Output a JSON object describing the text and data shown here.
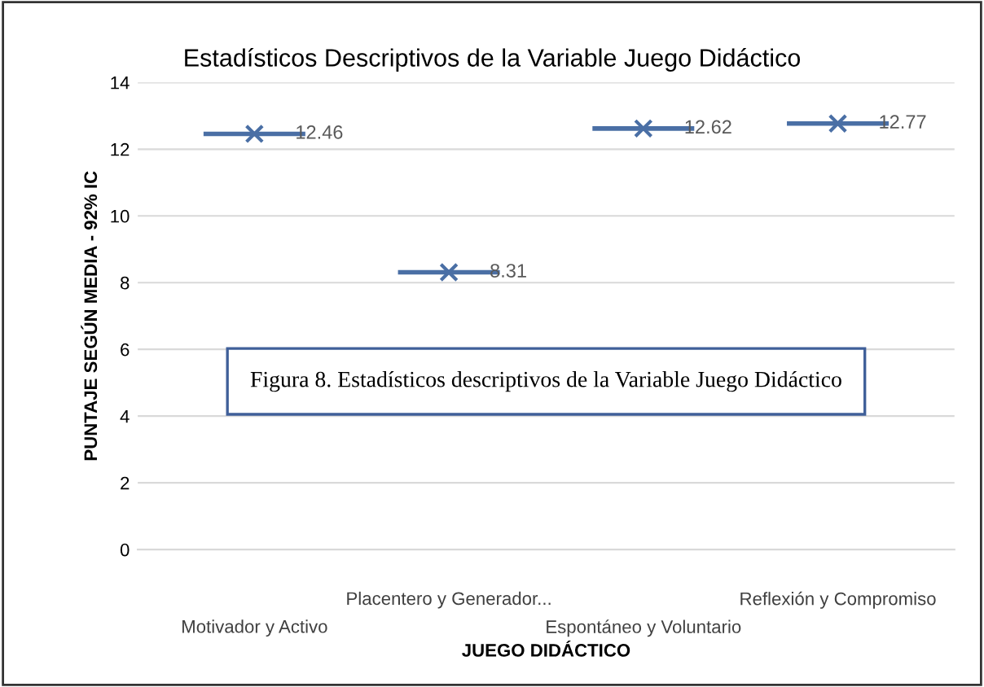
{
  "chart_data": {
    "type": "scatter",
    "title": "Estadísticos Descriptivos de la Variable Juego Didáctico",
    "xlabel": "JUEGO DIDÁCTICO",
    "ylabel": "PUNTAJE SEGÚN MEDIA - 92% IC",
    "categories": [
      "Motivador y Activo",
      "Placentero y Generador...",
      "Espontáneo y Voluntario",
      "Reflexión y Compromiso"
    ],
    "values": [
      12.46,
      8.31,
      12.62,
      12.77
    ],
    "color": "#4a6fa5",
    "marker": "cross",
    "data_labels": true,
    "ylim": [
      0,
      14
    ],
    "yticks": [
      0,
      2,
      4,
      6,
      8,
      10,
      12,
      14
    ],
    "grid": "y",
    "legend": false,
    "annotations": [
      "Figura 8. Estadísticos descriptivos de la Variable Juego Didáctico"
    ]
  }
}
